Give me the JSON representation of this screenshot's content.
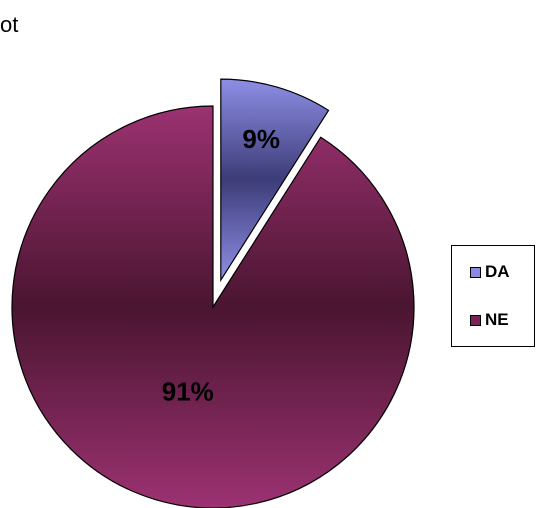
{
  "corner_text": "ot",
  "chart_data": {
    "type": "pie",
    "title": "",
    "slices": [
      {
        "label": "DA",
        "value": 9,
        "display": "9%",
        "color": "#8A8AE0",
        "exploded": true
      },
      {
        "label": "NE",
        "value": 91,
        "display": "91%",
        "color": "#7A2456",
        "exploded": false
      }
    ],
    "legend": {
      "placement": "right",
      "items": [
        "DA",
        "NE"
      ]
    }
  }
}
